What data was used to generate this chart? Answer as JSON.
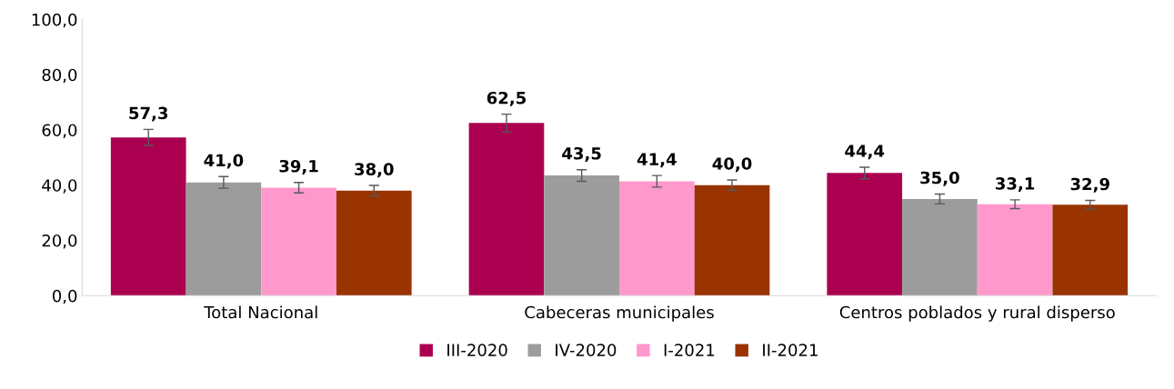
{
  "chart_data": {
    "type": "bar",
    "categories": [
      "Total Nacional",
      "Cabeceras municipales",
      "Centros poblados y rural disperso"
    ],
    "series": [
      {
        "name": "III-2020",
        "color": "#ab0050",
        "values": [
          57.3,
          62.5,
          44.4
        ],
        "errors": [
          2.9,
          3.2,
          2.1
        ],
        "value_labels": [
          "57,3",
          "62,5",
          "44,4"
        ]
      },
      {
        "name": "IV-2020",
        "color": "#9c9c9c",
        "values": [
          41.0,
          43.5,
          35.0
        ],
        "errors": [
          2.1,
          2.1,
          1.8
        ],
        "value_labels": [
          "41,0",
          "43,5",
          "35,0"
        ]
      },
      {
        "name": "I-2021",
        "color": "#ff99cc",
        "values": [
          39.1,
          41.4,
          33.1
        ],
        "errors": [
          1.9,
          2.1,
          1.6
        ],
        "value_labels": [
          "39,1",
          "41,4",
          "33,1"
        ]
      },
      {
        "name": "II-2021",
        "color": "#993300",
        "values": [
          38.0,
          40.0,
          32.9
        ],
        "errors": [
          1.9,
          1.9,
          1.6
        ],
        "value_labels": [
          "38,0",
          "40,0",
          "32,9"
        ]
      }
    ],
    "ylim": [
      0,
      100
    ],
    "yticks": [
      {
        "value": 0,
        "label": "0,0"
      },
      {
        "value": 20,
        "label": "20,0"
      },
      {
        "value": 40,
        "label": "40,0"
      },
      {
        "value": 60,
        "label": "60,0"
      },
      {
        "value": 80,
        "label": "80,0"
      },
      {
        "value": 100,
        "label": "100,0"
      }
    ],
    "grid": false,
    "legend": "bottom"
  }
}
